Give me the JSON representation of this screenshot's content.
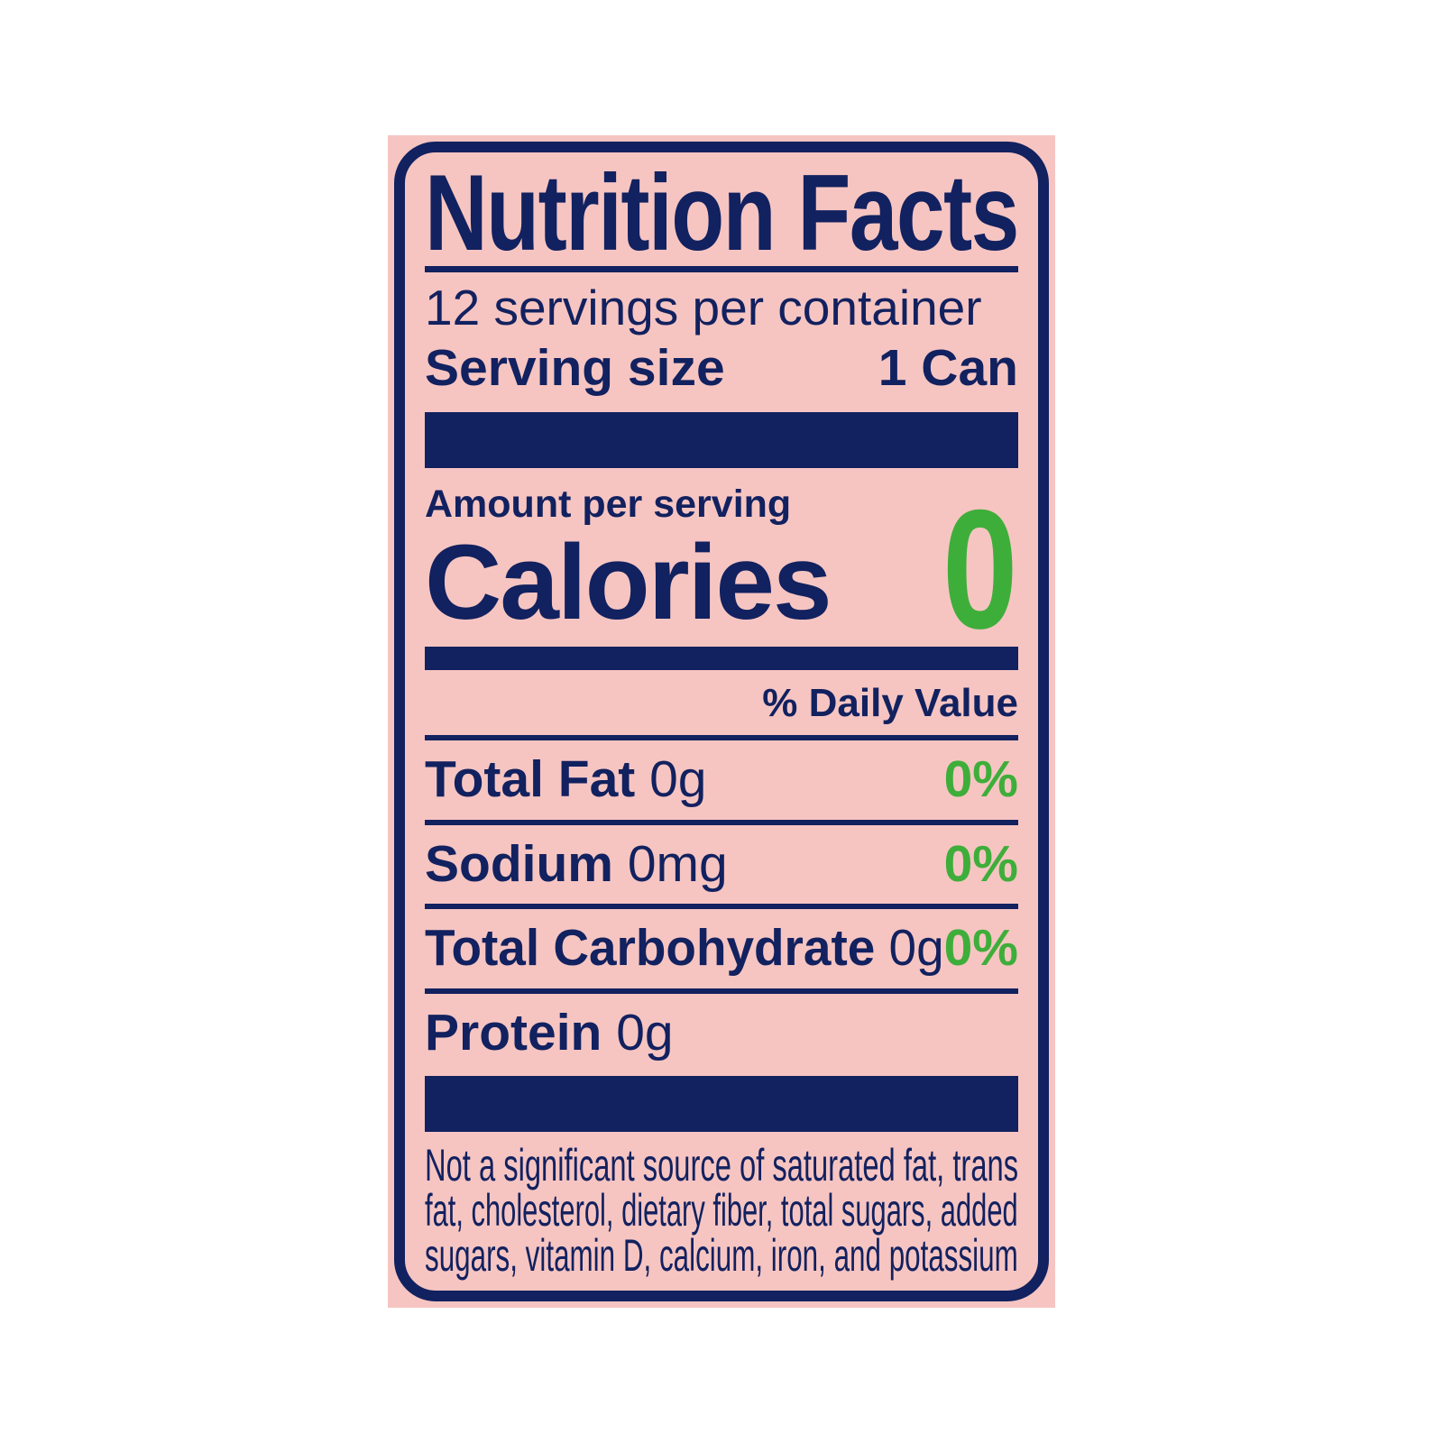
{
  "colors": {
    "background": "#ffffff",
    "card_pink": "#f6c5c2",
    "navy": "#12215f",
    "green": "#3eae3a"
  },
  "label": {
    "title": "Nutrition Facts",
    "servings_per_container": "12 servings per container",
    "serving_size": {
      "label": "Serving size",
      "value": "1 Can"
    },
    "amount_per_serving": "Amount per serving",
    "calories": {
      "label": "Calories",
      "value": "0"
    },
    "daily_value_header": "% Daily Value",
    "nutrients": [
      {
        "name": "Total Fat",
        "amount": "0g",
        "daily_value": "0%"
      },
      {
        "name": "Sodium",
        "amount": "0mg",
        "daily_value": "0%"
      },
      {
        "name": "Total Carbohydrate",
        "amount": "0g",
        "daily_value": "0%"
      },
      {
        "name": "Protein",
        "amount": "0g",
        "daily_value": ""
      }
    ],
    "footnote_lines": [
      "Not a significant source of saturated fat, trans",
      "fat, cholesterol, dietary fiber, total sugars, added",
      "sugars, vitamin D, calcium, iron, and potassium"
    ]
  }
}
